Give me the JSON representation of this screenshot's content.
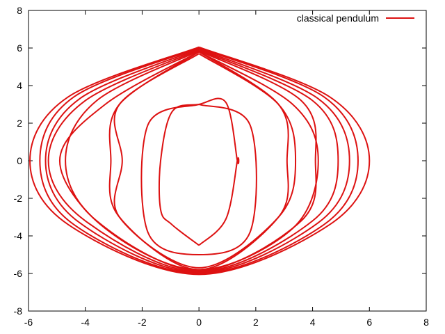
{
  "chart_data": {
    "type": "line",
    "title": "",
    "xlabel": "",
    "ylabel": "",
    "xlim": [
      -6,
      8
    ],
    "ylim": [
      -8,
      8
    ],
    "x_ticks": [
      -6,
      -4,
      -2,
      0,
      2,
      4,
      6,
      8
    ],
    "y_ticks": [
      -8,
      -6,
      -4,
      -2,
      0,
      2,
      4,
      6,
      8
    ],
    "x_tick_labels": [
      "-6",
      "-4",
      "-2",
      "0",
      "2",
      "4",
      "6",
      "8"
    ],
    "y_tick_labels": [
      "-8",
      "-6",
      "-4",
      "-2",
      "0",
      "2",
      "4",
      "6",
      "8"
    ],
    "grid": false,
    "legend_position": "top-right",
    "series": [
      {
        "name": "classical pendulum",
        "color": "#dd1111",
        "loops": [
          {
            "x": [
              0,
              0.95,
              1.35,
              1.35,
              0.95,
              0,
              -0.95,
              -1.35,
              -1.35,
              -0.95,
              0
            ],
            "y": [
              -4.5,
              -3.1,
              0,
              0,
              3.1,
              3.0,
              2.6,
              0,
              -2.6,
              -3.4,
              -4.5
            ]
          },
          {
            "x": [
              0,
              1.8,
              1.8,
              0,
              -1.8,
              -1.8,
              0
            ],
            "y": [
              3.0,
              1.9,
              -3.8,
              -5.0,
              -3.8,
              1.9,
              3.0
            ]
          },
          {
            "x": [
              0,
              2.8,
              3.4,
              2.8,
              0,
              -2.8,
              -2.7,
              -2.8,
              0
            ],
            "y": [
              5.7,
              3.0,
              0,
              -3.0,
              -5.7,
              -3.0,
              0,
              3.0,
              5.7
            ]
          },
          {
            "x": [
              0,
              2.8,
              3.1,
              2.8,
              0,
              -2.8,
              -3.1,
              -2.8,
              0
            ],
            "y": [
              5.8,
              3.0,
              0,
              -3.0,
              -5.8,
              -3.0,
              0,
              3.0,
              5.8
            ]
          },
          {
            "x": [
              0,
              3.3,
              4.2,
              3.3,
              0,
              -3.3,
              -4.9,
              -3.3,
              0
            ],
            "y": [
              5.8,
              3.0,
              0,
              -3.6,
              -5.8,
              -3.6,
              0,
              3.0,
              5.8
            ]
          },
          {
            "x": [
              0,
              3.6,
              4.1,
              3.6,
              0,
              -3.6,
              -4.7,
              -3.6,
              0
            ],
            "y": [
              5.85,
              3.2,
              0,
              -3.2,
              -5.85,
              -3.2,
              0,
              3.2,
              5.85
            ]
          },
          {
            "x": [
              0,
              4.0,
              4.9,
              4.0,
              0,
              -4.0,
              -5.3,
              -4.0,
              0
            ],
            "y": [
              5.9,
              3.2,
              0,
              -3.2,
              -5.9,
              -3.2,
              0,
              3.2,
              5.9
            ]
          },
          {
            "x": [
              0,
              4.2,
              5.3,
              4.2,
              0,
              -4.2,
              -5.4,
              -4.2,
              0
            ],
            "y": [
              5.95,
              3.3,
              0,
              -3.3,
              -5.95,
              -3.3,
              0,
              3.3,
              5.95
            ]
          },
          {
            "x": [
              0,
              4.4,
              5.6,
              4.4,
              0,
              -4.4,
              -5.6,
              -4.4,
              0
            ],
            "y": [
              6.0,
              3.4,
              0,
              -3.4,
              -6.0,
              -3.4,
              0,
              3.4,
              6.0
            ]
          },
          {
            "x": [
              0,
              4.6,
              6.0,
              4.6,
              0,
              -4.6,
              -5.95,
              -4.6,
              0
            ],
            "y": [
              6.05,
              3.4,
              0,
              -3.4,
              -6.05,
              -3.4,
              0,
              3.4,
              6.05
            ]
          }
        ]
      }
    ]
  }
}
